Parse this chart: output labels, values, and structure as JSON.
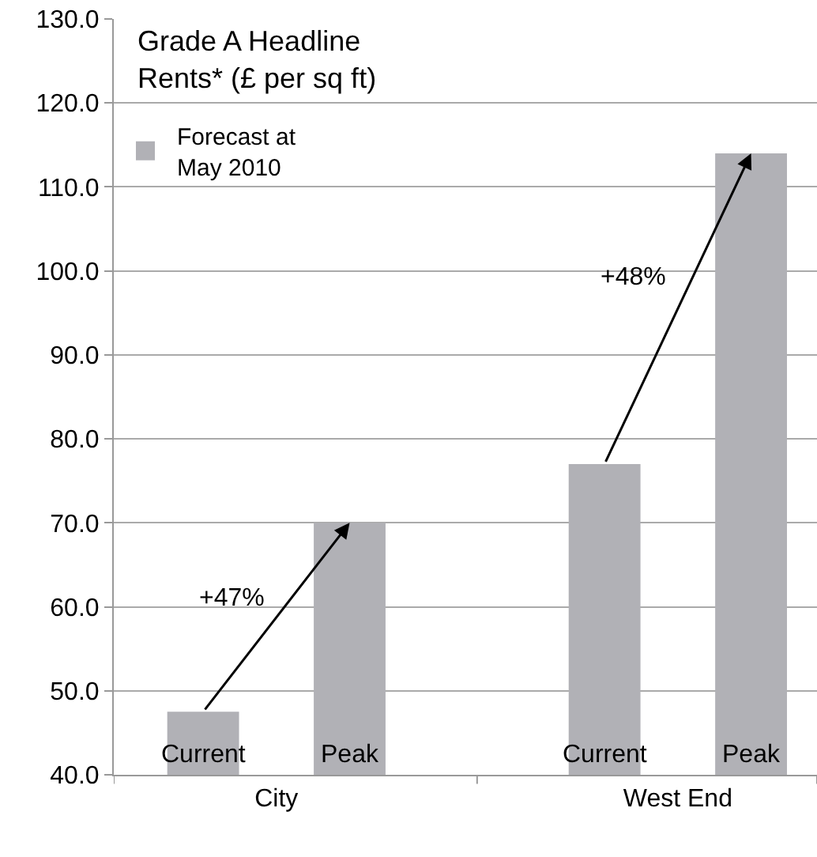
{
  "chart_data": {
    "type": "bar",
    "title": "Grade A Headline\nRents* (£ per sq ft)",
    "categories": [
      "Current",
      "Peak",
      "Current",
      "Peak"
    ],
    "series": [
      {
        "name": "Forecast at\nMay 2010",
        "color": "#b1b1b6",
        "values": [
          47.5,
          70,
          77,
          114
        ]
      }
    ],
    "annotations": [
      "+47%",
      "+48%",
      "City",
      "West End"
    ],
    "ylim": [
      40,
      130
    ],
    "yticks": [
      {
        "value": 40,
        "label": "40.0"
      },
      {
        "value": 50,
        "label": "50.0"
      },
      {
        "value": 60,
        "label": "60.0"
      },
      {
        "value": 70,
        "label": "70.0"
      },
      {
        "value": 80,
        "label": "80.0"
      },
      {
        "value": 90,
        "label": "90.0"
      },
      {
        "value": 100,
        "label": "100.0"
      },
      {
        "value": 110,
        "label": "110.0"
      },
      {
        "value": 120,
        "label": "120.0"
      },
      {
        "value": 130,
        "label": "130.0"
      }
    ],
    "grid": "y",
    "legend": "top left"
  }
}
